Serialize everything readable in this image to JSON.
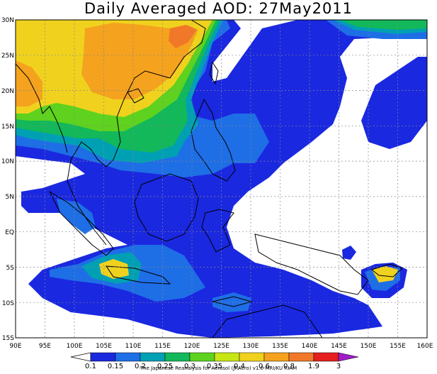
{
  "title": "Daily Averaged AOD: 27May2011",
  "credit": "The Japanese Reanalysis for Aerosol (JRAero) v1.0 MRI/KU RIAM",
  "lon_labels": [
    "90E",
    "95E",
    "100E",
    "105E",
    "110E",
    "115E",
    "120E",
    "125E",
    "130E",
    "135E",
    "140E",
    "145E",
    "150E",
    "155E",
    "160E"
  ],
  "lat_labels": [
    "30N",
    "25N",
    "20N",
    "15N",
    "10N",
    "5N",
    "EQ",
    "5S",
    "10S",
    "15S"
  ],
  "colorbar": {
    "labels": [
      "0.1",
      "0.15",
      "0.2",
      "0.25",
      "0.3",
      "0.35",
      "0.4",
      "0.6",
      "0.8",
      "1.9",
      "3"
    ],
    "colors": [
      "#1a28e0",
      "#1e6ee6",
      "#00a0b4",
      "#12b85a",
      "#5ed21e",
      "#c8e614",
      "#f0d21e",
      "#f5a21e",
      "#f07828",
      "#e61e1e",
      "#a01ec8"
    ]
  },
  "map": {
    "lon_range": [
      90,
      160
    ],
    "lat_range": [
      -15,
      30
    ],
    "colors": {
      "white": "#ffffff",
      "dark_blue": "#1a28e0",
      "blue": "#1e6ee6",
      "teal": "#00a0b4",
      "green": "#12b85a",
      "lime": "#5ed21e",
      "yellow": "#f0d21e",
      "orange": "#f5a21e",
      "dark_orange": "#f07828"
    }
  }
}
